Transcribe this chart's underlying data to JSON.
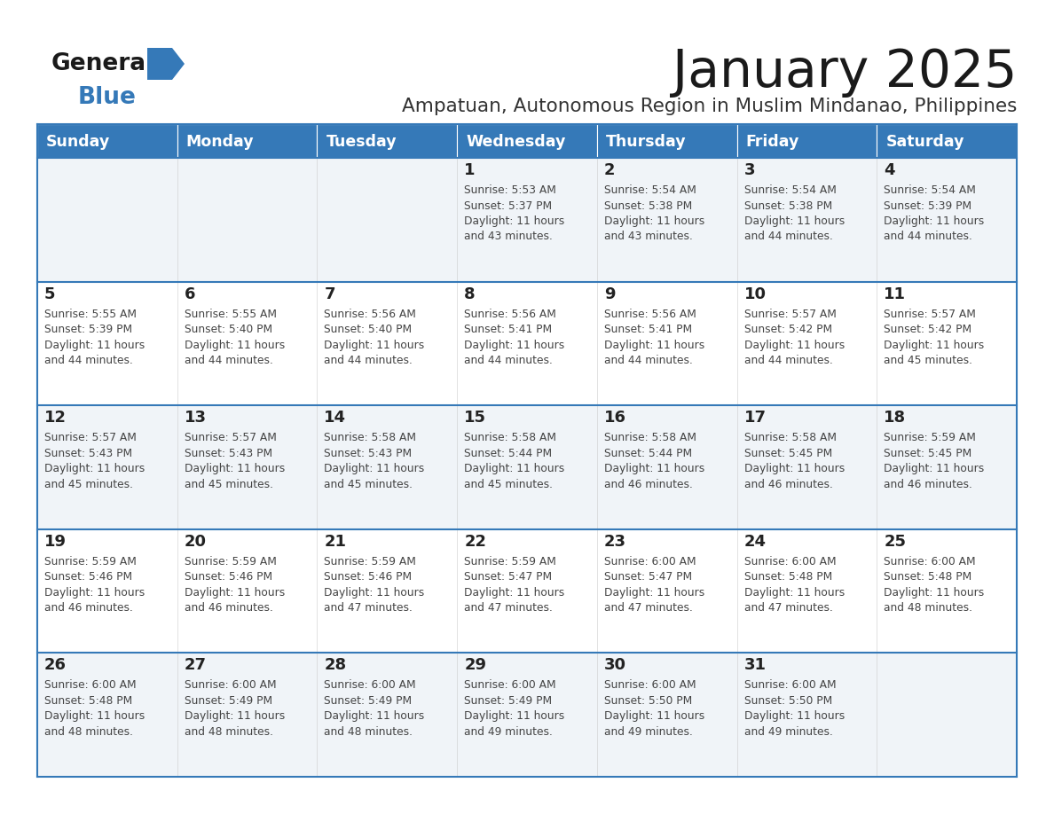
{
  "title": "January 2025",
  "subtitle": "Ampatuan, Autonomous Region in Muslim Mindanao, Philippines",
  "header_bg_color": "#3579B8",
  "header_text_color": "#FFFFFF",
  "day_names": [
    "Sunday",
    "Monday",
    "Tuesday",
    "Wednesday",
    "Thursday",
    "Friday",
    "Saturday"
  ],
  "row_bg_even": "#F0F4F8",
  "row_bg_odd": "#FFFFFF",
  "cell_border_color": "#3579B8",
  "day_num_color": "#222222",
  "info_text_color": "#444444",
  "title_color": "#1a1a1a",
  "subtitle_color": "#333333",
  "weeks": [
    [
      {
        "day": 0,
        "text": ""
      },
      {
        "day": 0,
        "text": ""
      },
      {
        "day": 0,
        "text": ""
      },
      {
        "day": 1,
        "text": "Sunrise: 5:53 AM\nSunset: 5:37 PM\nDaylight: 11 hours\nand 43 minutes."
      },
      {
        "day": 2,
        "text": "Sunrise: 5:54 AM\nSunset: 5:38 PM\nDaylight: 11 hours\nand 43 minutes."
      },
      {
        "day": 3,
        "text": "Sunrise: 5:54 AM\nSunset: 5:38 PM\nDaylight: 11 hours\nand 44 minutes."
      },
      {
        "day": 4,
        "text": "Sunrise: 5:54 AM\nSunset: 5:39 PM\nDaylight: 11 hours\nand 44 minutes."
      }
    ],
    [
      {
        "day": 5,
        "text": "Sunrise: 5:55 AM\nSunset: 5:39 PM\nDaylight: 11 hours\nand 44 minutes."
      },
      {
        "day": 6,
        "text": "Sunrise: 5:55 AM\nSunset: 5:40 PM\nDaylight: 11 hours\nand 44 minutes."
      },
      {
        "day": 7,
        "text": "Sunrise: 5:56 AM\nSunset: 5:40 PM\nDaylight: 11 hours\nand 44 minutes."
      },
      {
        "day": 8,
        "text": "Sunrise: 5:56 AM\nSunset: 5:41 PM\nDaylight: 11 hours\nand 44 minutes."
      },
      {
        "day": 9,
        "text": "Sunrise: 5:56 AM\nSunset: 5:41 PM\nDaylight: 11 hours\nand 44 minutes."
      },
      {
        "day": 10,
        "text": "Sunrise: 5:57 AM\nSunset: 5:42 PM\nDaylight: 11 hours\nand 44 minutes."
      },
      {
        "day": 11,
        "text": "Sunrise: 5:57 AM\nSunset: 5:42 PM\nDaylight: 11 hours\nand 45 minutes."
      }
    ],
    [
      {
        "day": 12,
        "text": "Sunrise: 5:57 AM\nSunset: 5:43 PM\nDaylight: 11 hours\nand 45 minutes."
      },
      {
        "day": 13,
        "text": "Sunrise: 5:57 AM\nSunset: 5:43 PM\nDaylight: 11 hours\nand 45 minutes."
      },
      {
        "day": 14,
        "text": "Sunrise: 5:58 AM\nSunset: 5:43 PM\nDaylight: 11 hours\nand 45 minutes."
      },
      {
        "day": 15,
        "text": "Sunrise: 5:58 AM\nSunset: 5:44 PM\nDaylight: 11 hours\nand 45 minutes."
      },
      {
        "day": 16,
        "text": "Sunrise: 5:58 AM\nSunset: 5:44 PM\nDaylight: 11 hours\nand 46 minutes."
      },
      {
        "day": 17,
        "text": "Sunrise: 5:58 AM\nSunset: 5:45 PM\nDaylight: 11 hours\nand 46 minutes."
      },
      {
        "day": 18,
        "text": "Sunrise: 5:59 AM\nSunset: 5:45 PM\nDaylight: 11 hours\nand 46 minutes."
      }
    ],
    [
      {
        "day": 19,
        "text": "Sunrise: 5:59 AM\nSunset: 5:46 PM\nDaylight: 11 hours\nand 46 minutes."
      },
      {
        "day": 20,
        "text": "Sunrise: 5:59 AM\nSunset: 5:46 PM\nDaylight: 11 hours\nand 46 minutes."
      },
      {
        "day": 21,
        "text": "Sunrise: 5:59 AM\nSunset: 5:46 PM\nDaylight: 11 hours\nand 47 minutes."
      },
      {
        "day": 22,
        "text": "Sunrise: 5:59 AM\nSunset: 5:47 PM\nDaylight: 11 hours\nand 47 minutes."
      },
      {
        "day": 23,
        "text": "Sunrise: 6:00 AM\nSunset: 5:47 PM\nDaylight: 11 hours\nand 47 minutes."
      },
      {
        "day": 24,
        "text": "Sunrise: 6:00 AM\nSunset: 5:48 PM\nDaylight: 11 hours\nand 47 minutes."
      },
      {
        "day": 25,
        "text": "Sunrise: 6:00 AM\nSunset: 5:48 PM\nDaylight: 11 hours\nand 48 minutes."
      }
    ],
    [
      {
        "day": 26,
        "text": "Sunrise: 6:00 AM\nSunset: 5:48 PM\nDaylight: 11 hours\nand 48 minutes."
      },
      {
        "day": 27,
        "text": "Sunrise: 6:00 AM\nSunset: 5:49 PM\nDaylight: 11 hours\nand 48 minutes."
      },
      {
        "day": 28,
        "text": "Sunrise: 6:00 AM\nSunset: 5:49 PM\nDaylight: 11 hours\nand 48 minutes."
      },
      {
        "day": 29,
        "text": "Sunrise: 6:00 AM\nSunset: 5:49 PM\nDaylight: 11 hours\nand 49 minutes."
      },
      {
        "day": 30,
        "text": "Sunrise: 6:00 AM\nSunset: 5:50 PM\nDaylight: 11 hours\nand 49 minutes."
      },
      {
        "day": 31,
        "text": "Sunrise: 6:00 AM\nSunset: 5:50 PM\nDaylight: 11 hours\nand 49 minutes."
      },
      {
        "day": 0,
        "text": ""
      }
    ]
  ]
}
